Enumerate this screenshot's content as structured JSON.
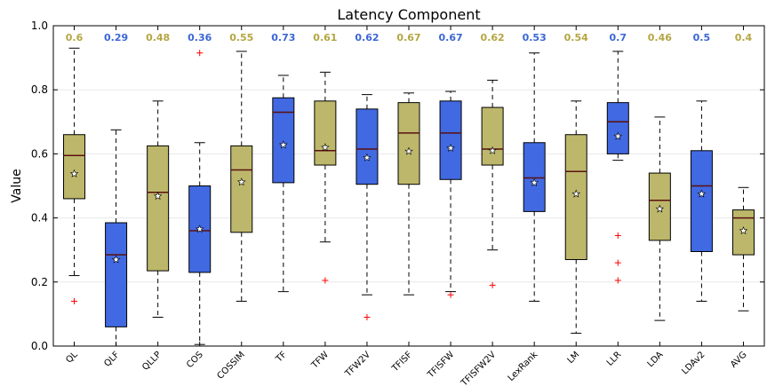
{
  "chart_data": {
    "type": "box",
    "title": "Latency Component",
    "xlabel": "",
    "ylabel": "Value",
    "ylim": [
      0.0,
      1.0
    ],
    "yticks": [
      "0.0",
      "0.2",
      "0.4",
      "0.6",
      "0.8",
      "1.0"
    ],
    "grid": "horizontal",
    "colors": {
      "olive": "#bdb76b",
      "blue": "#4169e1",
      "median": "#5a1010",
      "outlier": "#ff0000",
      "mean_marker": "#ffffff"
    },
    "label_colors": {
      "olive": "#b5a642",
      "blue": "#3a66d6"
    },
    "series": [
      {
        "name": "QL",
        "color": "olive",
        "whisker_low": 0.22,
        "q1": 0.46,
        "median": 0.595,
        "q3": 0.66,
        "whisker_high": 0.93,
        "mean": 0.538,
        "mean_label": "0.6",
        "outliers": [
          0.14
        ]
      },
      {
        "name": "QLF",
        "color": "blue",
        "whisker_low": 0.0,
        "q1": 0.06,
        "median": 0.285,
        "q3": 0.385,
        "whisker_high": 0.675,
        "mean": 0.27,
        "mean_label": "0.29",
        "outliers": []
      },
      {
        "name": "QLLP",
        "color": "olive",
        "whisker_low": 0.09,
        "q1": 0.235,
        "median": 0.48,
        "q3": 0.625,
        "whisker_high": 0.765,
        "mean": 0.468,
        "mean_label": "0.48",
        "outliers": []
      },
      {
        "name": "COS",
        "color": "blue",
        "whisker_low": 0.005,
        "q1": 0.23,
        "median": 0.36,
        "q3": 0.5,
        "whisker_high": 0.635,
        "mean": 0.365,
        "mean_label": "0.36",
        "outliers": [
          0.915
        ]
      },
      {
        "name": "COSSIM",
        "color": "olive",
        "whisker_low": 0.14,
        "q1": 0.355,
        "median": 0.55,
        "q3": 0.625,
        "whisker_high": 0.92,
        "mean": 0.512,
        "mean_label": "0.55",
        "outliers": []
      },
      {
        "name": "TF",
        "color": "blue",
        "whisker_low": 0.17,
        "q1": 0.51,
        "median": 0.73,
        "q3": 0.775,
        "whisker_high": 0.845,
        "mean": 0.628,
        "mean_label": "0.73",
        "outliers": []
      },
      {
        "name": "TFW",
        "color": "olive",
        "whisker_low": 0.325,
        "q1": 0.565,
        "median": 0.61,
        "q3": 0.765,
        "whisker_high": 0.855,
        "mean": 0.62,
        "mean_label": "0.61",
        "outliers": [
          0.205
        ]
      },
      {
        "name": "TFW2V",
        "color": "blue",
        "whisker_low": 0.16,
        "q1": 0.505,
        "median": 0.615,
        "q3": 0.74,
        "whisker_high": 0.785,
        "mean": 0.588,
        "mean_label": "0.62",
        "outliers": [
          0.09
        ]
      },
      {
        "name": "TFISF",
        "color": "olive",
        "whisker_low": 0.16,
        "q1": 0.505,
        "median": 0.665,
        "q3": 0.76,
        "whisker_high": 0.79,
        "mean": 0.608,
        "mean_label": "0.67",
        "outliers": []
      },
      {
        "name": "TFISFW",
        "color": "blue",
        "whisker_low": 0.17,
        "q1": 0.52,
        "median": 0.665,
        "q3": 0.765,
        "whisker_high": 0.795,
        "mean": 0.618,
        "mean_label": "0.67",
        "outliers": [
          0.16
        ]
      },
      {
        "name": "TFISFW2V",
        "color": "olive",
        "whisker_low": 0.3,
        "q1": 0.565,
        "median": 0.615,
        "q3": 0.745,
        "whisker_high": 0.83,
        "mean": 0.61,
        "mean_label": "0.62",
        "outliers": [
          0.19
        ]
      },
      {
        "name": "LexRank",
        "color": "blue",
        "whisker_low": 0.14,
        "q1": 0.42,
        "median": 0.525,
        "q3": 0.635,
        "whisker_high": 0.915,
        "mean": 0.51,
        "mean_label": "0.53",
        "outliers": []
      },
      {
        "name": "LM",
        "color": "olive",
        "whisker_low": 0.04,
        "q1": 0.27,
        "median": 0.545,
        "q3": 0.66,
        "whisker_high": 0.765,
        "mean": 0.475,
        "mean_label": "0.54",
        "outliers": []
      },
      {
        "name": "LLR",
        "color": "blue",
        "whisker_low": 0.58,
        "q1": 0.6,
        "median": 0.7,
        "q3": 0.76,
        "whisker_high": 0.92,
        "mean": 0.655,
        "mean_label": "0.7",
        "outliers": [
          0.345,
          0.26,
          0.205
        ]
      },
      {
        "name": "LDA",
        "color": "olive",
        "whisker_low": 0.08,
        "q1": 0.33,
        "median": 0.455,
        "q3": 0.54,
        "whisker_high": 0.715,
        "mean": 0.428,
        "mean_label": "0.46",
        "outliers": []
      },
      {
        "name": "LDAv2",
        "color": "blue",
        "whisker_low": 0.14,
        "q1": 0.295,
        "median": 0.5,
        "q3": 0.61,
        "whisker_high": 0.765,
        "mean": 0.475,
        "mean_label": "0.5",
        "outliers": []
      },
      {
        "name": "AVG",
        "color": "olive",
        "whisker_low": 0.11,
        "q1": 0.285,
        "median": 0.4,
        "q3": 0.425,
        "whisker_high": 0.495,
        "mean": 0.36,
        "mean_label": "0.4",
        "outliers": []
      }
    ]
  }
}
